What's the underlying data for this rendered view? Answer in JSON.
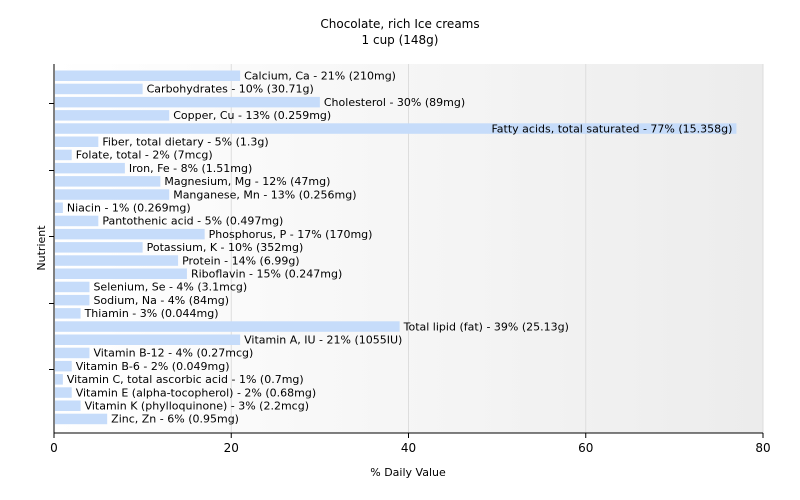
{
  "chart_data": {
    "type": "bar",
    "orientation": "horizontal",
    "title": "Chocolate, rich Ice creams",
    "subtitle": "1 cup (148g)",
    "xlabel": "% Daily Value",
    "ylabel": "Nutrient",
    "xlim": [
      0,
      80
    ],
    "xticks": [
      0,
      20,
      40,
      60,
      80
    ],
    "grid": true,
    "bar_color": "#c6dcfa",
    "categories": [
      "Calcium, Ca",
      "Carbohydrates",
      "Cholesterol",
      "Copper, Cu",
      "Fatty acids, total saturated",
      "Fiber, total dietary",
      "Folate, total",
      "Iron, Fe",
      "Magnesium, Mg",
      "Manganese, Mn",
      "Niacin",
      "Pantothenic acid",
      "Phosphorus, P",
      "Potassium, K",
      "Protein",
      "Riboflavin",
      "Selenium, Se",
      "Sodium, Na",
      "Thiamin",
      "Total lipid (fat)",
      "Vitamin A, IU",
      "Vitamin B-12",
      "Vitamin B-6",
      "Vitamin C, total ascorbic acid",
      "Vitamin E (alpha-tocopherol)",
      "Vitamin K (phylloquinone)",
      "Zinc, Zn"
    ],
    "values": [
      21,
      10,
      30,
      13,
      77,
      5,
      2,
      8,
      12,
      13,
      1,
      5,
      17,
      10,
      14,
      15,
      4,
      4,
      3,
      39,
      21,
      4,
      2,
      1,
      2,
      3,
      6
    ],
    "labels": [
      "Calcium, Ca - 21% (210mg)",
      "Carbohydrates - 10% (30.71g)",
      "Cholesterol - 30% (89mg)",
      "Copper, Cu - 13% (0.259mg)",
      "Fatty acids, total saturated - 77% (15.358g)",
      "Fiber, total dietary - 5% (1.3g)",
      "Folate, total - 2% (7mcg)",
      "Iron, Fe - 8% (1.51mg)",
      "Magnesium, Mg - 12% (47mg)",
      "Manganese, Mn - 13% (0.256mg)",
      "Niacin - 1% (0.269mg)",
      "Pantothenic acid - 5% (0.497mg)",
      "Phosphorus, P - 17% (170mg)",
      "Potassium, K - 10% (352mg)",
      "Protein - 14% (6.99g)",
      "Riboflavin - 15% (0.247mg)",
      "Selenium, Se - 4% (3.1mcg)",
      "Sodium, Na - 4% (84mg)",
      "Thiamin - 3% (0.044mg)",
      "Total lipid (fat) - 39% (25.13g)",
      "Vitamin A, IU - 21% (1055IU)",
      "Vitamin B-12 - 4% (0.27mcg)",
      "Vitamin B-6 - 2% (0.049mg)",
      "Vitamin C, total ascorbic acid - 1% (0.7mg)",
      "Vitamin E (alpha-tocopherol) - 2% (0.68mg)",
      "Vitamin K (phylloquinone) - 3% (2.2mcg)",
      "Zinc, Zn - 6% (0.95mg)"
    ]
  }
}
